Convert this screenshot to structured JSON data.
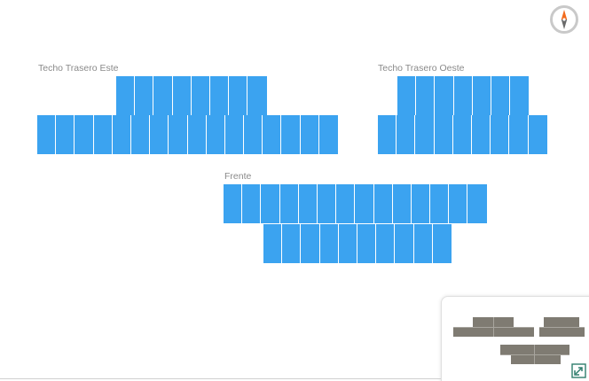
{
  "colors": {
    "panel": "#3ba3f0",
    "label": "#8a8a8a",
    "minimap_panel": "#7f7b72"
  },
  "groups": [
    {
      "id": "techo-trasero-este",
      "label": "Techo Trasero Este",
      "rows": [
        8,
        16
      ]
    },
    {
      "id": "techo-trasero-oeste",
      "label": "Techo Trasero Oeste",
      "rows": [
        7,
        9
      ]
    },
    {
      "id": "frente",
      "label": "Frente",
      "rows": [
        14,
        10
      ]
    }
  ],
  "icons": {
    "compass": "compass-icon",
    "expand": "expand-icon"
  }
}
